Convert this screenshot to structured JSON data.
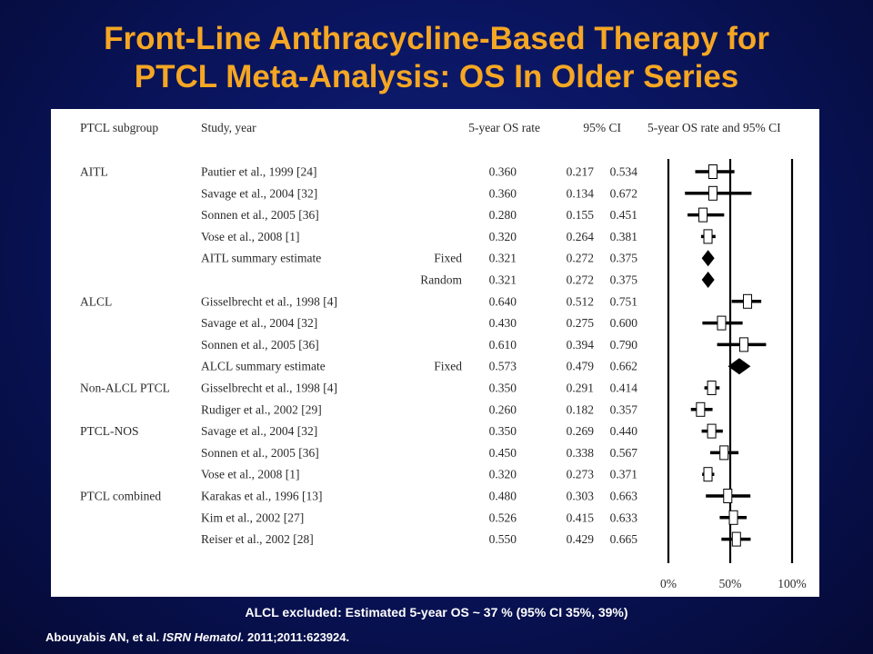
{
  "slide": {
    "title_line1": "Front-Line Anthracycline-Based Therapy for",
    "title_line2": "PTCL Meta-Analysis: OS In Older Series",
    "footnote": "ALCL excluded: Estimated 5-year OS ~ 37 % (95% CI 35%, 39%)",
    "citation_authors": "Abouyabis AN, et al.",
    "citation_journal": "ISRN Hematol.",
    "citation_rest": "2011;2011:623924."
  },
  "chart_data": {
    "type": "forest",
    "columns": {
      "subgroup": "PTCL subgroup",
      "study": "Study, year",
      "rate": "5-year OS rate",
      "ci": "95% CI",
      "plot": "5-year OS rate and 95% CI"
    },
    "axis": {
      "range": [
        0,
        1
      ],
      "ticks": [
        0,
        0.5,
        1
      ],
      "tick_labels": [
        "0%",
        "50%",
        "100%"
      ]
    },
    "rows": [
      {
        "group": "AITL",
        "study": "Pautier et al., 1999 [24]",
        "model": "",
        "rate": "0.360",
        "lo": "0.217",
        "hi": "0.534",
        "type": "study"
      },
      {
        "group": "",
        "study": "Savage et al., 2004 [32]",
        "model": "",
        "rate": "0.360",
        "lo": "0.134",
        "hi": "0.672",
        "type": "study"
      },
      {
        "group": "",
        "study": "Sonnen et al., 2005 [36]",
        "model": "",
        "rate": "0.280",
        "lo": "0.155",
        "hi": "0.451",
        "type": "study"
      },
      {
        "group": "",
        "study": "Vose et al., 2008 [1]",
        "model": "",
        "rate": "0.320",
        "lo": "0.264",
        "hi": "0.381",
        "type": "study"
      },
      {
        "group": "",
        "study": "AITL summary estimate",
        "model": "Fixed",
        "rate": "0.321",
        "lo": "0.272",
        "hi": "0.375",
        "type": "summary"
      },
      {
        "group": "",
        "study": "",
        "model": "Random",
        "rate": "0.321",
        "lo": "0.272",
        "hi": "0.375",
        "type": "summary"
      },
      {
        "group": "ALCL",
        "study": "Gisselbrecht et al., 1998 [4]",
        "model": "",
        "rate": "0.640",
        "lo": "0.512",
        "hi": "0.751",
        "type": "study"
      },
      {
        "group": "",
        "study": "Savage et al., 2004 [32]",
        "model": "",
        "rate": "0.430",
        "lo": "0.275",
        "hi": "0.600",
        "type": "study"
      },
      {
        "group": "",
        "study": "Sonnen et al., 2005 [36]",
        "model": "",
        "rate": "0.610",
        "lo": "0.394",
        "hi": "0.790",
        "type": "study"
      },
      {
        "group": "",
        "study": "ALCL summary estimate",
        "model": "Fixed",
        "rate": "0.573",
        "lo": "0.479",
        "hi": "0.662",
        "type": "summary"
      },
      {
        "group": "Non-ALCL PTCL",
        "study": "Gisselbrecht et al., 1998 [4]",
        "model": "",
        "rate": "0.350",
        "lo": "0.291",
        "hi": "0.414",
        "type": "study"
      },
      {
        "group": "",
        "study": "Rudiger et al., 2002 [29]",
        "model": "",
        "rate": "0.260",
        "lo": "0.182",
        "hi": "0.357",
        "type": "study"
      },
      {
        "group": "PTCL-NOS",
        "study": "Savage et al., 2004 [32]",
        "model": "",
        "rate": "0.350",
        "lo": "0.269",
        "hi": "0.440",
        "type": "study"
      },
      {
        "group": "",
        "study": "Sonnen et al., 2005 [36]",
        "model": "",
        "rate": "0.450",
        "lo": "0.338",
        "hi": "0.567",
        "type": "study"
      },
      {
        "group": "",
        "study": "Vose et al., 2008 [1]",
        "model": "",
        "rate": "0.320",
        "lo": "0.273",
        "hi": "0.371",
        "type": "study"
      },
      {
        "group": "PTCL combined",
        "study": "Karakas et al., 1996 [13]",
        "model": "",
        "rate": "0.480",
        "lo": "0.303",
        "hi": "0.663",
        "type": "study"
      },
      {
        "group": "",
        "study": "Kim et al., 2002 [27]",
        "model": "",
        "rate": "0.526",
        "lo": "0.415",
        "hi": "0.633",
        "type": "study"
      },
      {
        "group": "",
        "study": "Reiser et al., 2002 [28]",
        "model": "",
        "rate": "0.550",
        "lo": "0.429",
        "hi": "0.665",
        "type": "study"
      }
    ]
  }
}
